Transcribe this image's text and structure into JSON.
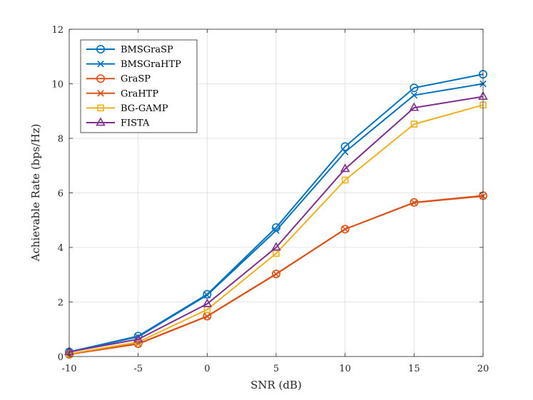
{
  "chart_data": {
    "type": "line",
    "title": "",
    "xlabel": "SNR (dB)",
    "ylabel": "Achievable Rate (bps/Hz)",
    "x": [
      -10,
      -5,
      0,
      5,
      10,
      15,
      20
    ],
    "xlim": [
      -10,
      20
    ],
    "ylim": [
      0,
      12
    ],
    "xticks": [
      "-10",
      "-5",
      "0",
      "5",
      "10",
      "15",
      "20"
    ],
    "yticks": [
      "0",
      "2",
      "4",
      "6",
      "8",
      "10",
      "12"
    ],
    "grid": true,
    "legend_position": "top-left",
    "series": [
      {
        "name": "BMSGraSP",
        "color": "#0072BD",
        "marker": "circle",
        "values": [
          0.17,
          0.75,
          2.28,
          4.73,
          7.7,
          9.85,
          10.35
        ]
      },
      {
        "name": "BMSGraHTP",
        "color": "#0072BD",
        "marker": "cross",
        "values": [
          0.16,
          0.72,
          2.25,
          4.62,
          7.5,
          9.58,
          10.0
        ]
      },
      {
        "name": "GraSP",
        "color": "#D95319",
        "marker": "circle",
        "values": [
          0.08,
          0.47,
          1.48,
          3.03,
          4.67,
          5.65,
          5.9
        ]
      },
      {
        "name": "GraHTP",
        "color": "#D95319",
        "marker": "cross",
        "values": [
          0.08,
          0.46,
          1.47,
          3.02,
          4.67,
          5.64,
          5.88
        ]
      },
      {
        "name": "BG-GAMP",
        "color": "#EDB120",
        "marker": "square",
        "values": [
          0.1,
          0.53,
          1.72,
          3.78,
          6.47,
          8.52,
          9.22
        ]
      },
      {
        "name": "FISTA",
        "color": "#7E2F8E",
        "marker": "triangle",
        "values": [
          0.17,
          0.63,
          1.93,
          4.0,
          6.88,
          9.12,
          9.53
        ]
      }
    ]
  }
}
